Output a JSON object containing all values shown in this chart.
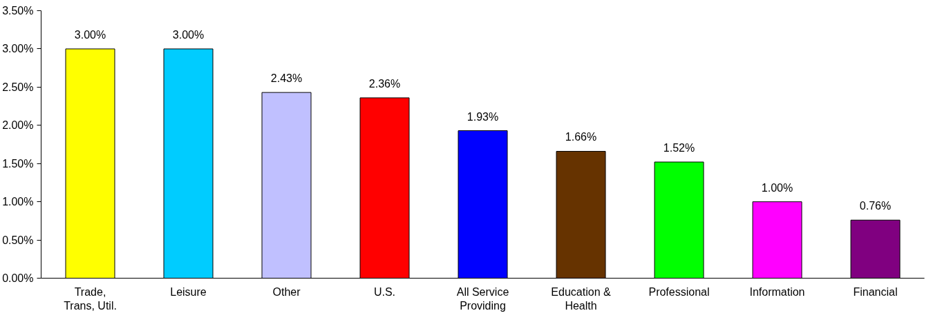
{
  "chart_data": {
    "type": "bar",
    "categories": [
      "Trade,\nTrans, Util.",
      "Leisure",
      "Other",
      "U.S.",
      "All Service\nProviding",
      "Education &\nHealth",
      "Professional",
      "Information",
      "Financial"
    ],
    "values": [
      3.0,
      3.0,
      2.43,
      2.36,
      1.93,
      1.66,
      1.52,
      1.0,
      0.76
    ],
    "colors": [
      "#ffff00",
      "#00ccff",
      "#c0c0ff",
      "#ff0000",
      "#0000ff",
      "#663300",
      "#00ff00",
      "#ff00ff",
      "#800080"
    ],
    "value_labels": [
      "3.00%",
      "3.00%",
      "2.43%",
      "2.36%",
      "1.93%",
      "1.66%",
      "1.52%",
      "1.00%",
      "0.76%"
    ],
    "ylim": [
      0,
      3.5
    ],
    "yticks": [
      {
        "value": 0,
        "label": "0.00%"
      },
      {
        "value": 0.5,
        "label": "0.50%"
      },
      {
        "value": 1,
        "label": "1.00%"
      },
      {
        "value": 1.5,
        "label": "1.50%"
      },
      {
        "value": 2,
        "label": "2.00%"
      },
      {
        "value": 2.5,
        "label": "2.50%"
      },
      {
        "value": 3,
        "label": "3.00%"
      },
      {
        "value": 3.5,
        "label": "3.50%"
      }
    ],
    "grid": false
  }
}
